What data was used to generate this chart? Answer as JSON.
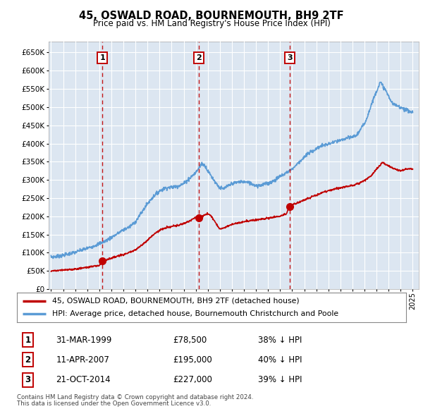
{
  "title": "45, OSWALD ROAD, BOURNEMOUTH, BH9 2TF",
  "subtitle": "Price paid vs. HM Land Registry's House Price Index (HPI)",
  "legend_line1": "45, OSWALD ROAD, BOURNEMOUTH, BH9 2TF (detached house)",
  "legend_line2": "HPI: Average price, detached house, Bournemouth Christchurch and Poole",
  "footer1": "Contains HM Land Registry data © Crown copyright and database right 2024.",
  "footer2": "This data is licensed under the Open Government Licence v3.0.",
  "transactions": [
    {
      "num": 1,
      "date": "31-MAR-1999",
      "price": "£78,500",
      "pct": "38% ↓ HPI",
      "year": 1999.25
    },
    {
      "num": 2,
      "date": "11-APR-2007",
      "price": "£195,000",
      "pct": "40% ↓ HPI",
      "year": 2007.28
    },
    {
      "num": 3,
      "date": "21-OCT-2014",
      "price": "£227,000",
      "pct": "39% ↓ HPI",
      "year": 2014.8
    }
  ],
  "hpi_color": "#5b9bd5",
  "price_color": "#c00000",
  "background_color": "#ffffff",
  "plot_bg_color": "#dce6f1",
  "grid_color": "#ffffff",
  "ylim": [
    0,
    680000
  ],
  "yticks": [
    0,
    50000,
    100000,
    150000,
    200000,
    250000,
    300000,
    350000,
    400000,
    450000,
    500000,
    550000,
    600000,
    650000
  ],
  "xlim_start": 1994.8,
  "xlim_end": 2025.5
}
